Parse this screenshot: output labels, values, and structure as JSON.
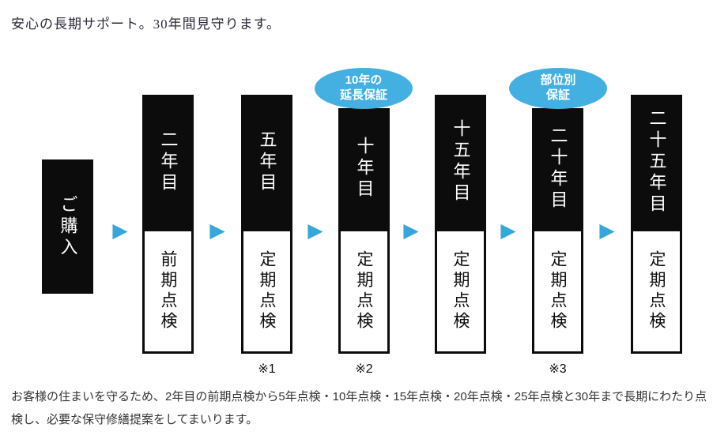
{
  "title": "安心の長期サポート。30年間見守ります。",
  "timeline": {
    "start_label": "ご購入",
    "arrow": "▶",
    "steps": [
      {
        "year": "二年目",
        "box": "前期点検",
        "note": ""
      },
      {
        "year": "五年目",
        "box": "定期点検",
        "note": "※1"
      },
      {
        "year": "十年目",
        "box": "定期点検",
        "note": "※2",
        "badge1": "10年の",
        "badge2": "延長保証"
      },
      {
        "year": "十五年目",
        "box": "定期点検",
        "note": ""
      },
      {
        "year": "二十年目",
        "box": "定期点検",
        "note": "※3",
        "badge1": "部位別",
        "badge2": "保証"
      },
      {
        "year": "二十五年目",
        "box": "定期点検",
        "note": ""
      }
    ]
  },
  "footer": "お客様の住まいを守るため、2年目の前期点検から5年点検・10年点検・15年点検・20年点検・25年点検と30年まで長期にわたり点検し、必要な保守修繕提案をしてまいります。",
  "colors": {
    "arrow_blue": "#35a7db",
    "badge_blue": "#44afe1",
    "box_black": "#0c0c0c"
  }
}
